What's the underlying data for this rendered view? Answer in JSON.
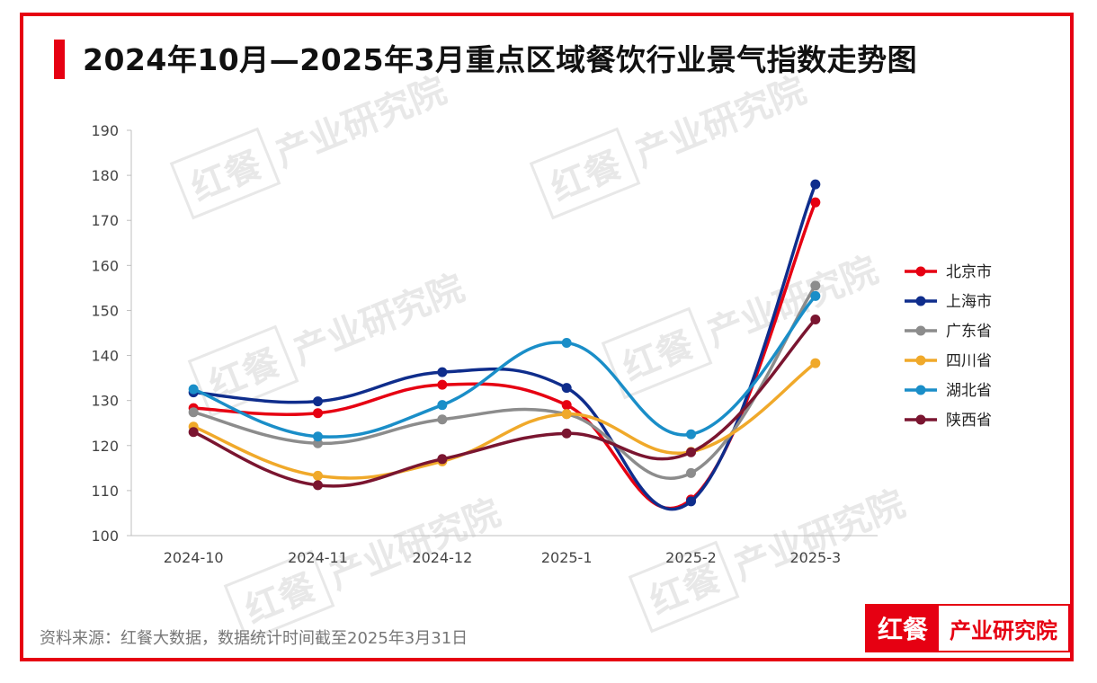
{
  "title": "2024年10月—2025年3月重点区域餐饮行业景气指数走势图",
  "source": "资料来源：红餐大数据，数据统计时间截至2025年3月31日",
  "logo": {
    "left": "红餐",
    "right": "产业研究院"
  },
  "watermark": {
    "brand": "红餐",
    "text": "产业研究院"
  },
  "colors": {
    "accent": "#e60012"
  },
  "chart_data": {
    "type": "line",
    "categories": [
      "2024-10",
      "2024-11",
      "2024-12",
      "2025-1",
      "2025-2",
      "2025-3"
    ],
    "ylim": [
      100,
      190
    ],
    "yticks": [
      100,
      110,
      120,
      130,
      140,
      150,
      160,
      170,
      180,
      190
    ],
    "legend_position": "right",
    "grid": false,
    "series": [
      {
        "name": "北京市",
        "color": "#e60012",
        "values": [
          128.3,
          127.2,
          133.5,
          129.0,
          108.0,
          174.0
        ]
      },
      {
        "name": "上海市",
        "color": "#0f2d8c",
        "values": [
          131.8,
          129.8,
          136.3,
          132.8,
          107.6,
          178.0
        ]
      },
      {
        "name": "广东省",
        "color": "#8c8c8c",
        "values": [
          127.4,
          120.5,
          125.8,
          127.0,
          113.9,
          155.5
        ]
      },
      {
        "name": "四川省",
        "color": "#f0a92a",
        "values": [
          124.2,
          113.3,
          116.5,
          127.0,
          118.6,
          138.3
        ]
      },
      {
        "name": "湖北省",
        "color": "#1a8ec8",
        "values": [
          132.5,
          122.0,
          129.0,
          142.8,
          122.5,
          153.2
        ]
      },
      {
        "name": "陕西省",
        "color": "#7a1530",
        "values": [
          123.0,
          111.2,
          117.0,
          122.7,
          118.5,
          148.0
        ]
      }
    ]
  }
}
